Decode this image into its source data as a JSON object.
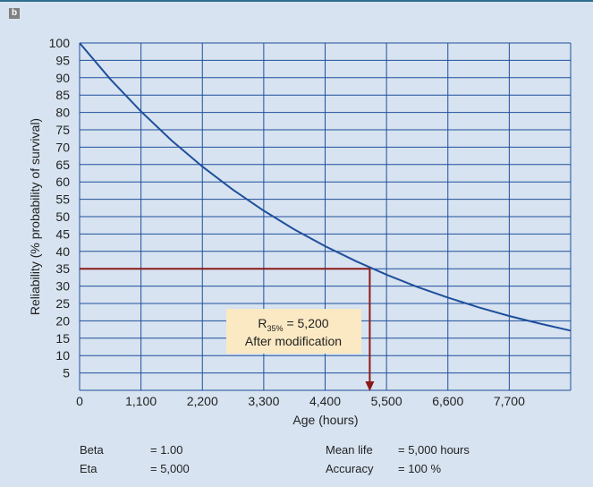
{
  "panel_label": "b",
  "colors": {
    "background": "#d7e3f0",
    "grid": "#1f4f9c",
    "curve": "#1f4f9c",
    "marker": "#8b1a1a",
    "annotation_box": "#fbe9c3"
  },
  "chart_data": {
    "type": "line",
    "title": "",
    "xlabel": "Age (hours)",
    "ylabel": "Reliability (% probability of survival)",
    "xlim": [
      0,
      8800
    ],
    "ylim": [
      0,
      100
    ],
    "x_ticks": [
      0,
      1100,
      2200,
      3300,
      4400,
      5500,
      6600,
      7700
    ],
    "x_tick_labels": [
      "0",
      "1,100",
      "2,200",
      "3,300",
      "4,400",
      "5,500",
      "6,600",
      "7,700"
    ],
    "y_ticks": [
      5,
      10,
      15,
      20,
      25,
      30,
      35,
      40,
      45,
      50,
      55,
      60,
      65,
      70,
      75,
      80,
      85,
      90,
      95,
      100
    ],
    "y_tick_labels": [
      "5",
      "10",
      "15",
      "20",
      "25",
      "30",
      "35",
      "40",
      "45",
      "50",
      "55",
      "60",
      "65",
      "70",
      "75",
      "80",
      "85",
      "90",
      "95",
      "100"
    ],
    "grid": true,
    "series": [
      {
        "x": [
          0,
          550,
          1100,
          1650,
          2200,
          2750,
          3300,
          3850,
          4400,
          4950,
          5200,
          5500,
          6050,
          6600,
          7150,
          7700,
          8250,
          8800
        ],
        "values": [
          100,
          89.6,
          80.3,
          71.9,
          64.4,
          57.7,
          51.7,
          46.3,
          41.5,
          37.2,
          35.4,
          33.3,
          29.8,
          26.7,
          23.9,
          21.4,
          19.2,
          17.2
        ]
      }
    ],
    "reference": {
      "x": 5200,
      "y": 35
    },
    "annotation": {
      "main": "R",
      "subscript": "35%",
      "value": " = 5,200",
      "line2": "After modification"
    }
  },
  "parameters": {
    "beta_label": "Beta",
    "beta_value": "=  1.00",
    "eta_label": "Eta",
    "eta_value": "=  5,000",
    "mean_life_label": "Mean life",
    "mean_life_value": "=  5,000 hours",
    "accuracy_label": "Accuracy",
    "accuracy_value": "=  100 %"
  }
}
